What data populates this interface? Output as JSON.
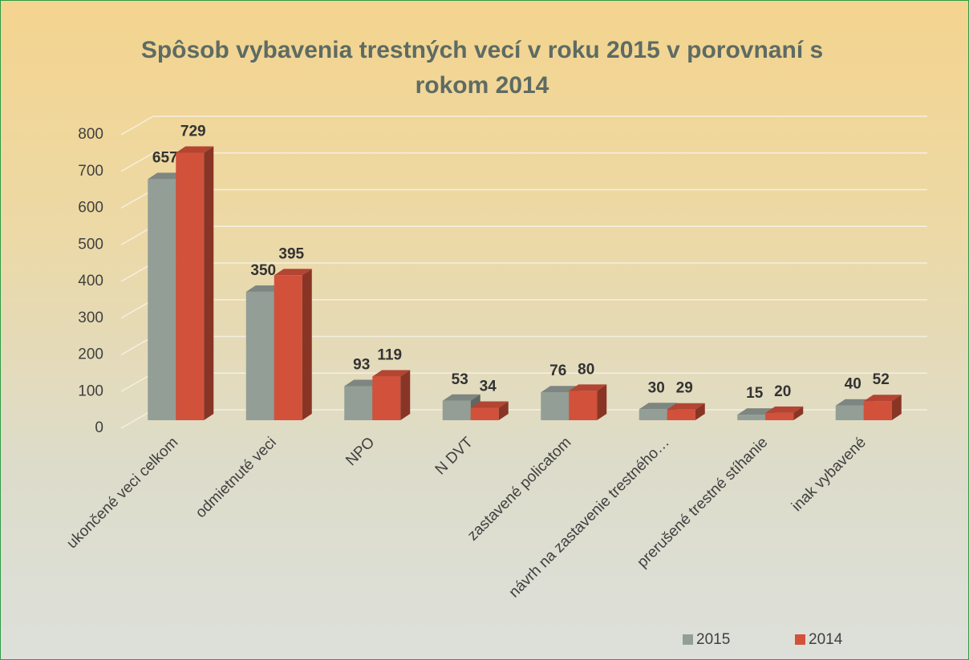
{
  "chart_data": {
    "type": "bar3d",
    "title": "Spôsob vybavenia trestných vecí v roku 2015 v porovnaní s rokom 2014",
    "categories": [
      "ukončené veci celkom",
      "odmietnuté veci",
      "NPO",
      "N DVT",
      "zastavené policatom",
      "návrh na zastavenie trestného…",
      "prerušené trestné stíhanie",
      "inak vybavené"
    ],
    "series": [
      {
        "name": "2015",
        "color": "#939e96",
        "values": [
          657,
          350,
          93,
          53,
          76,
          30,
          15,
          40
        ]
      },
      {
        "name": "2014",
        "color": "#d2513b",
        "values": [
          729,
          395,
          119,
          34,
          80,
          29,
          20,
          52
        ]
      }
    ],
    "ylim": [
      0,
      800
    ],
    "yticks": [
      0,
      100,
      200,
      300,
      400,
      500,
      600,
      700,
      800
    ],
    "grid": true,
    "legend": "bottom"
  }
}
